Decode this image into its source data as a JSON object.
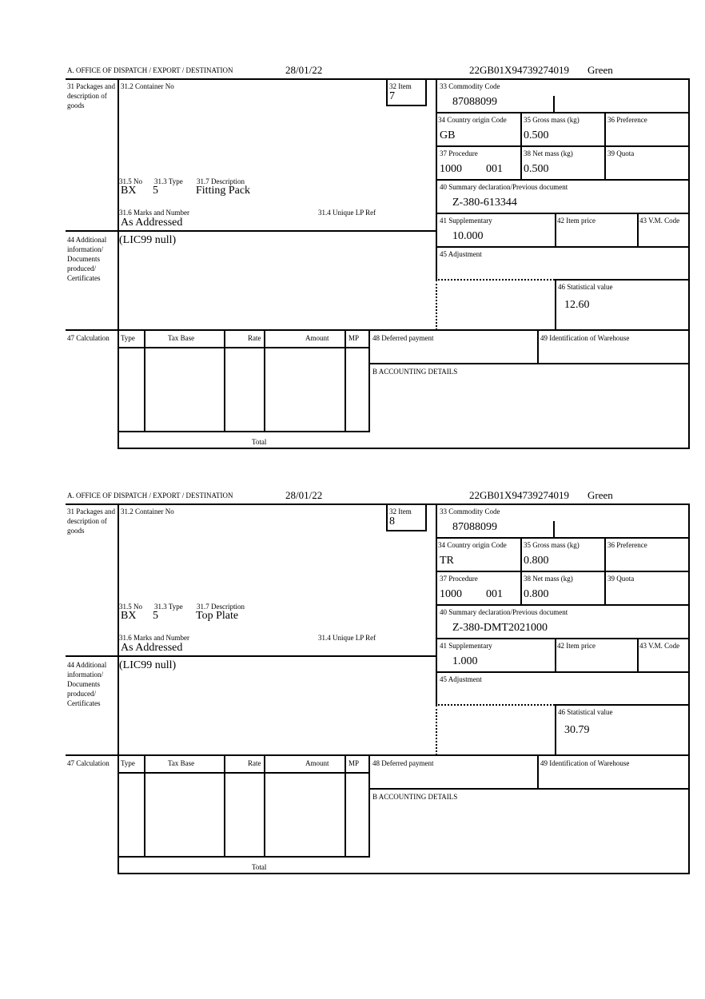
{
  "labels": {
    "office": "A.  OFFICE OF DISPATCH / EXPORT / DESTINATION",
    "packages": "31 Packages and description of goods",
    "container": "31.2 Container No",
    "item": "32 Item",
    "no": "31.5 No",
    "type": "31.3 Type",
    "description": "31.7 Description",
    "marks": "31.6 Marks and Number",
    "unique_lp": "31.4 Unique LP Ref",
    "additional": "44 Additional information/ Documents produced/ Certificates",
    "commodity": "33 Commodity Code",
    "country": "34 Country origin Code",
    "gross": "35 Gross mass (kg)",
    "preference": "36 Preference",
    "procedure": "37 Procedure",
    "net": "38 Net mass (kg)",
    "quota": "39 Quota",
    "summary": "40 Summary declaration/Previous document",
    "supplementary": "41 Supplementary",
    "item_price": "42 Item price",
    "vm_code": "43 V.M. Code",
    "adjustment": "45 Adjustment",
    "statistical": "46 Statistical value",
    "calculation": "47 Calculation",
    "calc_type": "Type",
    "tax_base": "Tax Base",
    "rate": "Rate",
    "amount": "Amount",
    "mp": "MP",
    "total": "Total",
    "deferred": "48 Deferred payment",
    "warehouse": "49 Identification of Warehouse",
    "accounting": "B ACCOUNTING DETAILS"
  },
  "forms": [
    {
      "date": "28/01/22",
      "reference": "22GB01X94739274019",
      "route": "Green",
      "item": "7",
      "no": "BX",
      "type": "5",
      "description": "Fitting Pack",
      "marks": "As Addressed",
      "additional": "(LIC99 null)",
      "commodity": "87088099",
      "country": "GB",
      "gross": "0.500",
      "procedure": "1000",
      "procedure_code": "001",
      "net": "0.500",
      "summary": "Z-380-613344",
      "supplementary": "10.000",
      "statistical": "12.60"
    },
    {
      "date": "28/01/22",
      "reference": "22GB01X94739274019",
      "route": "Green",
      "item": "8",
      "no": "BX",
      "type": "5",
      "description": "Top Plate",
      "marks": "As Addressed",
      "additional": "(LIC99 null)",
      "commodity": "87088099",
      "country": "TR",
      "gross": "0.800",
      "procedure": "1000",
      "procedure_code": "001",
      "net": "0.800",
      "summary": "Z-380-DMT2021000",
      "supplementary": "1.000",
      "statistical": "30.79"
    }
  ]
}
